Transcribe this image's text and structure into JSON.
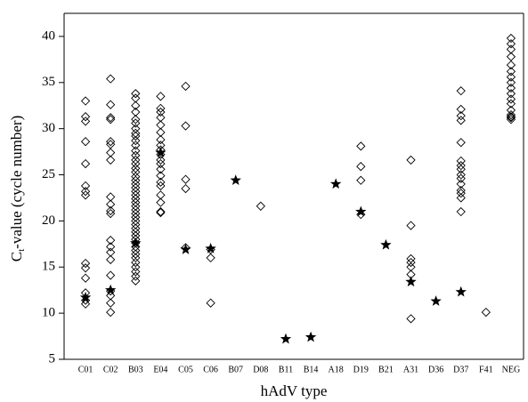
{
  "chart_data": {
    "type": "scatter",
    "x_label": "hAdV type",
    "y_label": {
      "symbol": "C",
      "subscript": "t",
      "text": "-value (cycle number)"
    },
    "categories": [
      "C01",
      "C02",
      "B03",
      "E04",
      "C05",
      "C06",
      "B07",
      "D08",
      "B11",
      "B14",
      "A18",
      "D19",
      "B21",
      "A31",
      "D36",
      "D37",
      "F41",
      "NEG"
    ],
    "ylim": [
      5,
      42.5
    ],
    "yticks": [
      5,
      10,
      15,
      20,
      25,
      30,
      35,
      40
    ],
    "series": [
      {
        "marker": "diamond",
        "color": "#000000",
        "x": [
          "C01",
          "C01",
          "C01",
          "C01",
          "C01",
          "C01",
          "C01",
          "C01",
          "C01",
          "C01",
          "C01",
          "C01",
          "C01",
          "C01",
          "C02",
          "C02",
          "C02",
          "C02",
          "C02",
          "C02",
          "C02",
          "C02",
          "C02",
          "C02",
          "C02",
          "C02",
          "C02",
          "C02",
          "C02",
          "C02",
          "C02",
          "C02",
          "C02",
          "C02",
          "C02",
          "B03",
          "B03",
          "B03",
          "B03",
          "B03",
          "B03",
          "B03",
          "B03",
          "B03",
          "B03",
          "B03",
          "B03",
          "B03",
          "B03",
          "B03",
          "B03",
          "B03",
          "B03",
          "B03",
          "B03",
          "B03",
          "B03",
          "B03",
          "B03",
          "B03",
          "B03",
          "B03",
          "B03",
          "B03",
          "B03",
          "B03",
          "B03",
          "B03",
          "B03",
          "B03",
          "B03",
          "B03",
          "B03",
          "B03",
          "B03",
          "B03",
          "B03",
          "B03",
          "B03",
          "B03",
          "E04",
          "E04",
          "E04",
          "E04",
          "E04",
          "E04",
          "E04",
          "E04",
          "E04",
          "E04",
          "E04",
          "E04",
          "E04",
          "E04",
          "E04",
          "E04",
          "E04",
          "E04",
          "E04",
          "E04",
          "C05",
          "C05",
          "C05",
          "C05",
          "C05",
          "C06",
          "C06",
          "C06",
          "D08",
          "D19",
          "D19",
          "D19",
          "D19",
          "A31",
          "A31",
          "A31",
          "A31",
          "A31",
          "A31",
          "A31",
          "D37",
          "D37",
          "D37",
          "D37",
          "D37",
          "D37",
          "D37",
          "D37",
          "D37",
          "D37",
          "D37",
          "D37",
          "D37",
          "D37",
          "D37",
          "F41",
          "NEG",
          "NEG",
          "NEG",
          "NEG",
          "NEG",
          "NEG",
          "NEG",
          "NEG",
          "NEG",
          "NEG",
          "NEG",
          "NEG",
          "NEG",
          "NEG",
          "NEG",
          "NEG",
          "NEG"
        ],
        "values": [
          33,
          31.3,
          30.8,
          28.6,
          26.2,
          23.8,
          23.2,
          22.8,
          15.4,
          14.9,
          13.8,
          12.2,
          11.4,
          11,
          35.4,
          32.6,
          31.2,
          31,
          28.6,
          28.3,
          27.4,
          26.6,
          22.6,
          21.8,
          21.1,
          20.8,
          17.9,
          17.2,
          16.6,
          15.8,
          14.1,
          12.4,
          11.9,
          11.1,
          10.1,
          33.8,
          33.3,
          32.5,
          31.8,
          31,
          30.6,
          30,
          29.5,
          29.2,
          28.7,
          28.2,
          27.6,
          27.1,
          26.6,
          26.2,
          25.7,
          25.3,
          24.8,
          24.4,
          24,
          23.6,
          23.2,
          22.8,
          22.4,
          22,
          21.6,
          21.2,
          20.8,
          20.4,
          20,
          19.6,
          19.2,
          18.8,
          18.4,
          18,
          17.6,
          17.2,
          16.8,
          16.4,
          16,
          15.5,
          15,
          14.5,
          14,
          13.5,
          33.5,
          32.2,
          31.8,
          31.2,
          30.4,
          29.6,
          28.8,
          28.2,
          27.7,
          27.2,
          26.6,
          26.2,
          25.6,
          24.9,
          24.2,
          23.8,
          22.8,
          22,
          21,
          20.9,
          34.6,
          30.3,
          24.5,
          23.5,
          17.1,
          16.9,
          16,
          11.1,
          21.6,
          28.1,
          25.9,
          24.4,
          20.7,
          26.6,
          19.5,
          15.9,
          15.5,
          15,
          14.2,
          9.4,
          34.1,
          32.1,
          31.4,
          30.9,
          28.5,
          26.5,
          26,
          25.6,
          25,
          24.6,
          24,
          23.3,
          23,
          22.5,
          21,
          10.1,
          39.8,
          39.2,
          38.6,
          37.8,
          36.9,
          36.2,
          35.6,
          35,
          34.4,
          33.8,
          33.2,
          32.7,
          32,
          31.5,
          31.3,
          31.2,
          31
        ]
      },
      {
        "marker": "star",
        "color": "#000000",
        "x": [
          "C01",
          "C02",
          "B03",
          "E04",
          "C05",
          "C06",
          "B07",
          "B11",
          "B14",
          "A18",
          "D19",
          "B21",
          "A31",
          "D36",
          "D37"
        ],
        "values": [
          11.7,
          12.5,
          17.6,
          27.4,
          16.9,
          17,
          24.4,
          7.2,
          7.4,
          24,
          21,
          17.4,
          13.4,
          11.3,
          12.3
        ]
      }
    ]
  }
}
